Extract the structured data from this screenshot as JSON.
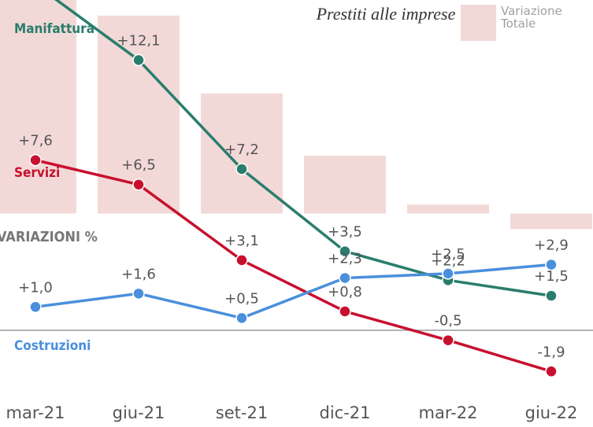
{
  "chart_data": {
    "type": "line",
    "title": "Prestiti alle imprese",
    "y_label": "VARIAZIONI %",
    "categories": [
      "mar-21",
      "giu-21",
      "set-21",
      "dic-21",
      "mar-22",
      "giu-22"
    ],
    "ylim": [
      -4.4,
      14.8
    ],
    "y2lim": [
      -9.6,
      9.6
    ],
    "bar_series": {
      "name": "Variazione Totale",
      "color": "#f2d9d7",
      "axis": "y2",
      "values": [
        10,
        8.9,
        5.4,
        2.6,
        0.4,
        -0.7
      ]
    },
    "series": [
      {
        "name": "Manifattura",
        "color": "#2a7d6c",
        "values": [
          15.5,
          12.1,
          7.2,
          3.5,
          2.2,
          1.5
        ],
        "value_labels": [
          null,
          "+12,1",
          "+7,2",
          "+3,5",
          "+2,2",
          "+1,5"
        ]
      },
      {
        "name": "Servizi",
        "color": "#c8102e",
        "values": [
          7.6,
          6.5,
          3.1,
          0.8,
          -0.5,
          -1.9
        ],
        "value_labels": [
          "+7,6",
          "+6,5",
          "+3,1",
          "+0,8",
          "-0,5",
          "-1,9"
        ]
      },
      {
        "name": "Costruzioni",
        "color": "#4a8fdc",
        "values": [
          1.0,
          1.6,
          0.5,
          2.3,
          2.5,
          2.9
        ],
        "value_labels": [
          "+1,0",
          "+1,6",
          "+0,5",
          "+2,3",
          "+2,5",
          "+2,9"
        ]
      }
    ]
  }
}
